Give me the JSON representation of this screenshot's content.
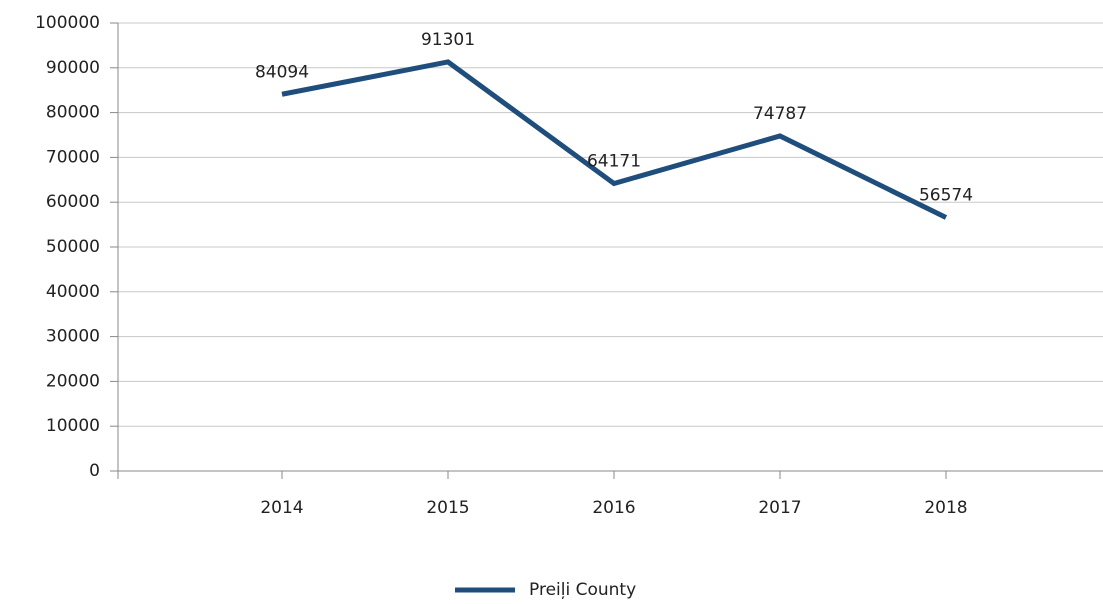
{
  "chart_data": {
    "type": "line",
    "categories": [
      "2014",
      "2015",
      "2016",
      "2017",
      "2018"
    ],
    "series": [
      {
        "name": "Preiļi County",
        "color": "#1f4e7d",
        "values": [
          84094,
          91301,
          64171,
          74787,
          56574
        ]
      }
    ],
    "ylim": [
      0,
      100000
    ],
    "yticks": [
      0,
      10000,
      20000,
      30000,
      40000,
      50000,
      60000,
      70000,
      80000,
      90000,
      100000
    ],
    "grid": true,
    "legend": "bottom"
  }
}
